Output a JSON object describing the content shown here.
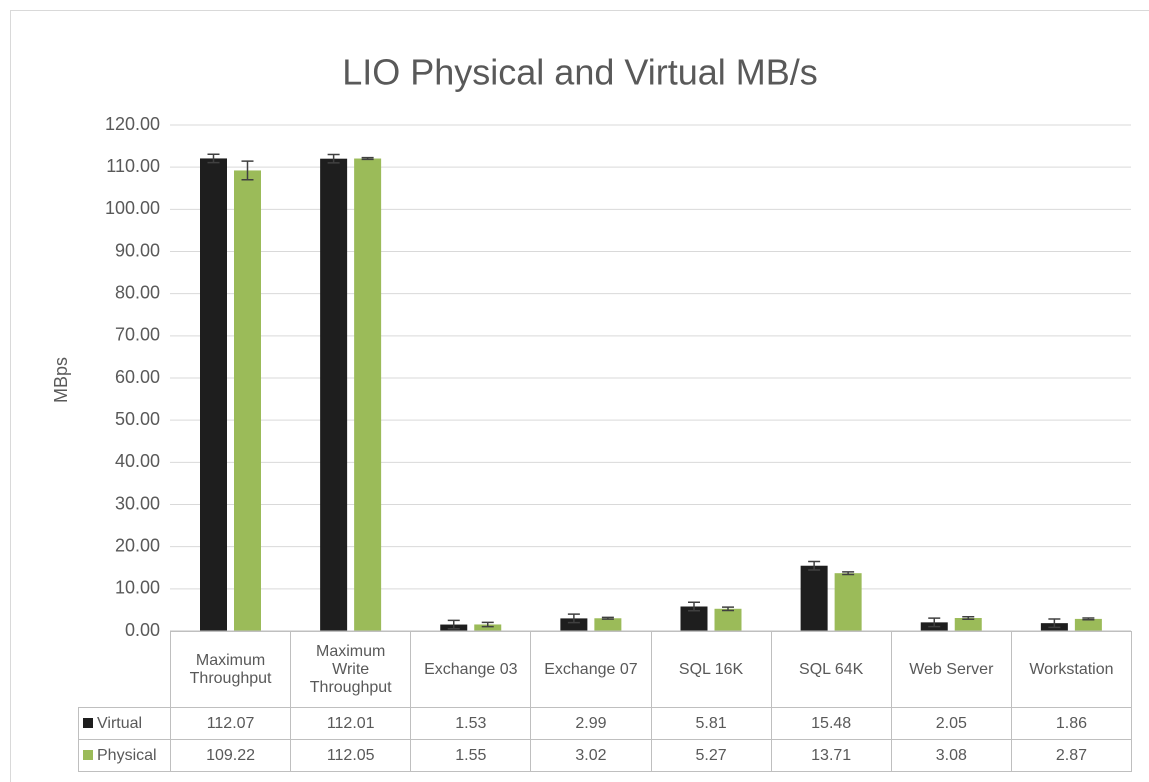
{
  "chart_data": {
    "type": "bar",
    "title": "LIO Physical and Virtual MB/s",
    "y_label": "MBps",
    "categories": [
      "Maximum Throughput",
      "Maximum Write Throughput",
      "Exchange 03",
      "Exchange 07",
      "SQL 16K",
      "SQL 64K",
      "Web Server",
      "Workstation"
    ],
    "series": [
      {
        "name": "Virtual",
        "color": "#1e1e1e",
        "values": [
          112.07,
          112.01,
          1.53,
          2.99,
          5.81,
          15.48,
          2.05,
          1.86
        ],
        "errors": [
          1,
          1,
          1,
          1,
          1,
          1,
          1,
          1
        ]
      },
      {
        "name": "Physical",
        "color": "#9bbb59",
        "values": [
          109.22,
          112.05,
          1.55,
          3.02,
          5.27,
          13.71,
          3.08,
          2.87
        ],
        "errors": [
          2.2,
          0.2,
          0.5,
          0.2,
          0.4,
          0.3,
          0.3,
          0.2
        ]
      }
    ],
    "ylim": [
      0,
      120
    ],
    "yticks": [
      {
        "value": 0,
        "label": "0.00"
      },
      {
        "value": 10,
        "label": "10.00"
      },
      {
        "value": 20,
        "label": "20.00"
      },
      {
        "value": 30,
        "label": "30.00"
      },
      {
        "value": 40,
        "label": "40.00"
      },
      {
        "value": 50,
        "label": "50.00"
      },
      {
        "value": 60,
        "label": "60.00"
      },
      {
        "value": 70,
        "label": "70.00"
      },
      {
        "value": 80,
        "label": "80.00"
      },
      {
        "value": 90,
        "label": "90.00"
      },
      {
        "value": 100,
        "label": "100.00"
      },
      {
        "value": 110,
        "label": "110.00"
      },
      {
        "value": 120,
        "label": "120.00"
      }
    ],
    "grid": true,
    "data_table": true
  }
}
